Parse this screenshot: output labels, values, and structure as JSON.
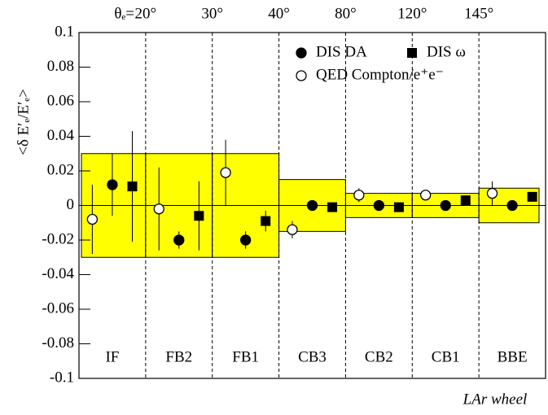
{
  "chart_data": {
    "type": "errorbar",
    "ylabel": "<δ E′ₑ/E′ₑ>",
    "xlabel": "LAr wheel",
    "top_label": "θₑ=",
    "boundary_labels": [
      "20°",
      "30°",
      "40°",
      "80°",
      "120°",
      "145°"
    ],
    "categories": [
      "IF",
      "FB2",
      "FB1",
      "CB3",
      "CB2",
      "CB1",
      "BBE"
    ],
    "band": {
      "color": "#ffff00",
      "upper": [
        0.03,
        0.03,
        0.03,
        0.015,
        0.007,
        0.007,
        0.01
      ],
      "lower": [
        -0.03,
        -0.03,
        -0.03,
        -0.015,
        -0.007,
        -0.007,
        -0.01
      ]
    },
    "series": [
      {
        "name": "QED Compton/e⁺e⁻",
        "marker": "open-circle",
        "color": "#000000",
        "values": [
          -0.008,
          -0.002,
          0.019,
          -0.014,
          0.006,
          0.006,
          0.007
        ],
        "errors": [
          0.02,
          0.024,
          0.019,
          0.005,
          0.004,
          0.002,
          0.007
        ]
      },
      {
        "name": "DIS DA",
        "marker": "circle",
        "color": "#000000",
        "values": [
          0.012,
          -0.02,
          -0.02,
          0,
          0,
          0,
          0
        ],
        "errors": [
          0.018,
          0.005,
          0.005,
          0.001,
          0.001,
          0.001,
          0.001
        ]
      },
      {
        "name": "DIS ω",
        "marker": "square",
        "color": "#000000",
        "values": [
          0.011,
          -0.006,
          -0.009,
          -0.001,
          -0.001,
          0.003,
          0.005
        ],
        "errors": [
          0.032,
          0.02,
          0.006,
          0.001,
          0.001,
          0.001,
          0.001
        ]
      }
    ],
    "ylim": [
      -0.1,
      0.1
    ],
    "yticks": [
      -0.1,
      -0.08,
      -0.06,
      -0.04,
      -0.02,
      0,
      0.02,
      0.04,
      0.06,
      0.08,
      0.1
    ]
  }
}
